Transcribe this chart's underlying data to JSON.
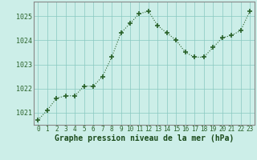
{
  "x": [
    0,
    1,
    2,
    3,
    4,
    5,
    6,
    7,
    8,
    9,
    10,
    11,
    12,
    13,
    14,
    15,
    16,
    17,
    18,
    19,
    20,
    21,
    22,
    23
  ],
  "y": [
    1020.7,
    1021.1,
    1021.6,
    1021.7,
    1021.7,
    1022.1,
    1022.1,
    1022.5,
    1023.3,
    1024.3,
    1024.7,
    1025.1,
    1025.2,
    1024.6,
    1024.3,
    1024.0,
    1023.5,
    1023.3,
    1023.3,
    1023.7,
    1024.1,
    1024.2,
    1024.4,
    1025.2
  ],
  "line_color": "#2a622a",
  "marker_color": "#2a622a",
  "bg_color": "#cceee8",
  "grid_color": "#88c8c0",
  "xlabel": "Graphe pression niveau de la mer (hPa)",
  "xlabel_color": "#1a4a1a",
  "ylabel_ticks": [
    1021,
    1022,
    1023,
    1024,
    1025
  ],
  "xtick_labels": [
    "0",
    "1",
    "2",
    "3",
    "4",
    "5",
    "6",
    "7",
    "8",
    "9",
    "10",
    "11",
    "12",
    "13",
    "14",
    "15",
    "16",
    "17",
    "18",
    "19",
    "20",
    "21",
    "22",
    "23"
  ],
  "ylim": [
    1020.5,
    1025.6
  ],
  "xlim": [
    -0.5,
    23.5
  ]
}
